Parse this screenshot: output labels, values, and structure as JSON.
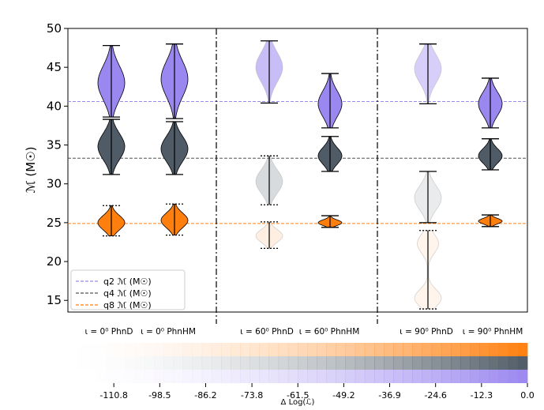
{
  "chart_data": {
    "type": "violin",
    "ylabel": "ℳ (M☉)",
    "ylim": [
      13.5,
      50
    ],
    "yticks": [
      "15",
      "20",
      "25",
      "30",
      "35",
      "40",
      "45",
      "50"
    ],
    "ytick_values": [
      15,
      20,
      25,
      30,
      35,
      40,
      45,
      50
    ],
    "x_labels": [
      "ι = 0⁰ PhnD",
      "ι = 0⁰ PhnHM",
      "ι = 60⁰ PhnD",
      "ι = 60⁰ PhnHM",
      "ι = 90⁰ PhnD",
      "ι = 90⁰ PhnHM"
    ],
    "reference_lines": [
      {
        "name": "q2",
        "value": 40.6,
        "color": "#9a8ae8"
      },
      {
        "name": "q4",
        "value": 33.3,
        "color": "#555555"
      },
      {
        "name": "q8",
        "value": 24.9,
        "color": "#ff7f0e"
      }
    ],
    "legend": {
      "position": "lower-left",
      "entries": [
        "q2 ℳ (M☉)",
        "q4 ℳ (M☉)",
        "q8 ℳ (M☉)"
      ]
    },
    "series": [
      {
        "name": "q2",
        "violins": [
          {
            "min": 38.6,
            "max": 47.8,
            "peak": 43.0,
            "shape": "single",
            "alpha": 1.0,
            "color": "#9b87f0",
            "dotted": false
          },
          {
            "min": 38.4,
            "max": 48.0,
            "peak": 43.5,
            "shape": "single",
            "alpha": 1.0,
            "color": "#9b87f0",
            "dotted": false
          },
          {
            "min": 40.4,
            "max": 48.4,
            "peak": 45.0,
            "shape": "single",
            "alpha": 0.55,
            "color": "#9b87f0",
            "dotted": false
          },
          {
            "min": 37.2,
            "max": 44.2,
            "peak": 40.3,
            "shape": "single",
            "alpha": 1.0,
            "color": "#9b87f0",
            "dotted": false
          },
          {
            "min": 40.3,
            "max": 48.0,
            "peak": 44.8,
            "shape": "single",
            "alpha": 0.4,
            "color": "#9b87f0",
            "dotted": false
          },
          {
            "min": 37.2,
            "max": 43.6,
            "peak": 40.3,
            "shape": "single",
            "alpha": 1.0,
            "color": "#9b87f0",
            "dotted": false
          }
        ]
      },
      {
        "name": "q4",
        "violins": [
          {
            "min": 31.2,
            "max": 38.3,
            "peak": 34.8,
            "shape": "single",
            "alpha": 1.0,
            "color": "#4f5b66",
            "dotted": false
          },
          {
            "min": 31.2,
            "max": 38.0,
            "peak": 34.5,
            "shape": "single",
            "alpha": 1.0,
            "color": "#4f5b66",
            "dotted": false
          },
          {
            "min": 27.3,
            "max": 33.6,
            "peak": 30.3,
            "shape": "single",
            "alpha": 0.22,
            "color": "#4f5b66",
            "dotted": true
          },
          {
            "min": 31.6,
            "max": 36.1,
            "peak": 33.6,
            "shape": "single",
            "alpha": 1.0,
            "color": "#4f5b66",
            "dotted": false
          },
          {
            "min": 25.0,
            "max": 31.6,
            "peak": 28.2,
            "shape": "single",
            "alpha": 0.12,
            "color": "#4f5b66",
            "dotted": false
          },
          {
            "min": 31.8,
            "max": 35.8,
            "peak": 33.6,
            "shape": "single",
            "alpha": 1.0,
            "color": "#4f5b66",
            "dotted": false
          }
        ]
      },
      {
        "name": "q8",
        "violins": [
          {
            "min": 23.3,
            "max": 27.2,
            "peak": 25.0,
            "shape": "single",
            "alpha": 1.0,
            "color": "#ff7f0e",
            "dotted": true
          },
          {
            "min": 23.4,
            "max": 27.4,
            "peak": 25.3,
            "shape": "single",
            "alpha": 1.0,
            "color": "#ff7f0e",
            "dotted": true
          },
          {
            "min": 21.7,
            "max": 25.1,
            "peak": 23.3,
            "shape": "single",
            "alpha": 0.12,
            "color": "#ff7f0e",
            "dotted": true
          },
          {
            "min": 24.4,
            "max": 25.9,
            "peak": 25.0,
            "shape": "single",
            "alpha": 1.0,
            "color": "#ff7f0e",
            "dotted": false
          },
          {
            "min": 13.9,
            "max": 24.0,
            "peak": 15.0,
            "shape": "bimodal",
            "alpha": 0.08,
            "color": "#ff7f0e",
            "dotted": true
          },
          {
            "min": 24.5,
            "max": 26.0,
            "peak": 25.2,
            "shape": "single",
            "alpha": 1.0,
            "color": "#ff7f0e",
            "dotted": false
          }
        ]
      }
    ],
    "colorbar": {
      "label": "Δ Log(ℒ)",
      "min": -123.1,
      "max": 0.0,
      "ticks": [
        "-110.8",
        "-98.5",
        "-86.2",
        "-73.8",
        "-61.5",
        "-49.2",
        "-36.9",
        "-24.6",
        "-12.3",
        "0.0"
      ],
      "tick_values": [
        -110.8,
        -98.5,
        -86.2,
        -73.8,
        -61.5,
        -49.2,
        -36.9,
        -24.6,
        -12.3,
        0.0
      ],
      "rows": [
        "#ff7f0e",
        "#4f5b66",
        "#9b87f0"
      ]
    }
  }
}
